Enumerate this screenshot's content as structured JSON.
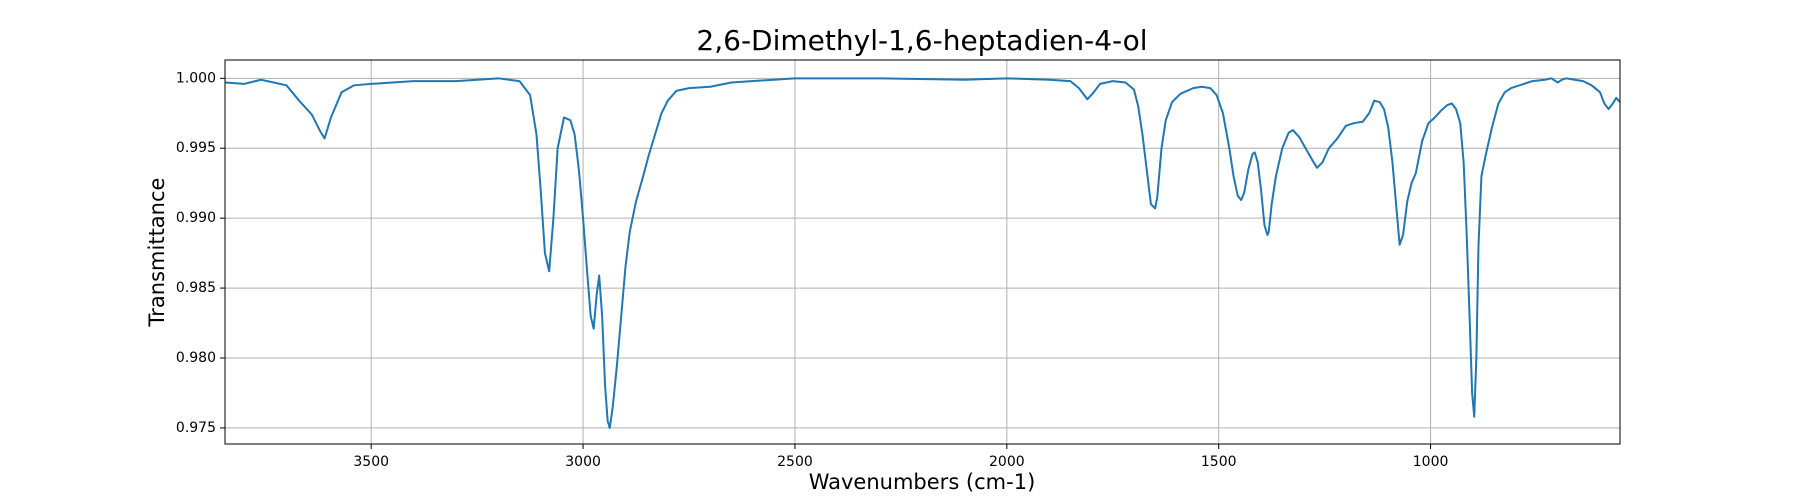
{
  "chart_data": {
    "type": "line",
    "title": "2,6-Dimethyl-1,6-heptadien-4-ol",
    "x_label": "Wavenumbers (cm-1)",
    "y_label": "Transmittance",
    "xlim": [
      3845,
      553
    ],
    "ylim": [
      0.97385,
      1.00131
    ],
    "xticks": [
      3500,
      3000,
      2500,
      2000,
      1500,
      1000
    ],
    "yticks": [
      {
        "value": 0.975,
        "label": "0.975"
      },
      {
        "value": 0.98,
        "label": "0.980"
      },
      {
        "value": 0.985,
        "label": "0.985"
      },
      {
        "value": 0.99,
        "label": "0.990"
      },
      {
        "value": 0.995,
        "label": "0.995"
      },
      {
        "value": 1.0,
        "label": "1.000"
      }
    ],
    "grid": true,
    "series": [
      {
        "name": "Transmittance",
        "color": "#1f77b4",
        "x": [
          3845,
          3800,
          3760,
          3730,
          3700,
          3670,
          3640,
          3620,
          3610,
          3595,
          3570,
          3540,
          3500,
          3400,
          3300,
          3200,
          3150,
          3125,
          3110,
          3100,
          3090,
          3080,
          3070,
          3060,
          3045,
          3030,
          3020,
          3010,
          3000,
          2990,
          2982,
          2975,
          2968,
          2962,
          2955,
          2948,
          2942,
          2937,
          2930,
          2920,
          2910,
          2900,
          2890,
          2875,
          2860,
          2845,
          2830,
          2815,
          2800,
          2780,
          2750,
          2700,
          2650,
          2500,
          2300,
          2100,
          2000,
          1900,
          1850,
          1830,
          1810,
          1795,
          1780,
          1750,
          1720,
          1700,
          1690,
          1680,
          1670,
          1660,
          1650,
          1645,
          1635,
          1625,
          1610,
          1590,
          1560,
          1540,
          1520,
          1505,
          1490,
          1475,
          1465,
          1455,
          1447,
          1440,
          1430,
          1420,
          1415,
          1408,
          1400,
          1392,
          1385,
          1382,
          1375,
          1365,
          1350,
          1335,
          1325,
          1310,
          1295,
          1280,
          1268,
          1255,
          1240,
          1220,
          1200,
          1180,
          1160,
          1145,
          1133,
          1120,
          1110,
          1100,
          1090,
          1080,
          1073,
          1065,
          1055,
          1045,
          1035,
          1020,
          1005,
          990,
          975,
          960,
          950,
          940,
          930,
          922,
          915,
          908,
          902,
          897,
          892,
          887,
          880,
          870,
          855,
          840,
          825,
          810,
          790,
          760,
          730,
          715,
          700,
          690,
          680,
          660,
          640,
          620,
          600,
          590,
          580,
          570,
          562,
          553
        ],
        "values": [
          0.9997,
          0.9996,
          0.9999,
          0.9997,
          0.9995,
          0.9984,
          0.9974,
          0.9962,
          0.9957,
          0.9972,
          0.999,
          0.9995,
          0.9996,
          0.9998,
          0.9998,
          1.0,
          0.9998,
          0.9988,
          0.996,
          0.992,
          0.9875,
          0.9862,
          0.99,
          0.995,
          0.9972,
          0.997,
          0.996,
          0.9935,
          0.99,
          0.986,
          0.983,
          0.9821,
          0.9845,
          0.9859,
          0.983,
          0.978,
          0.9755,
          0.975,
          0.9765,
          0.9795,
          0.983,
          0.9865,
          0.989,
          0.9912,
          0.9928,
          0.9945,
          0.996,
          0.9975,
          0.9984,
          0.9991,
          0.9993,
          0.9994,
          0.9997,
          1.0,
          1.0,
          0.9999,
          1.0,
          0.9999,
          0.9998,
          0.9993,
          0.9985,
          0.999,
          0.9996,
          0.9998,
          0.9997,
          0.9992,
          0.998,
          0.996,
          0.9935,
          0.991,
          0.9907,
          0.9915,
          0.995,
          0.997,
          0.9983,
          0.9989,
          0.9993,
          0.9994,
          0.9993,
          0.9988,
          0.9975,
          0.995,
          0.993,
          0.9916,
          0.9913,
          0.9918,
          0.9935,
          0.9946,
          0.9947,
          0.994,
          0.992,
          0.9895,
          0.9888,
          0.989,
          0.991,
          0.993,
          0.995,
          0.9961,
          0.9963,
          0.9958,
          0.995,
          0.9942,
          0.9936,
          0.994,
          0.995,
          0.9957,
          0.9966,
          0.9968,
          0.9969,
          0.9975,
          0.9984,
          0.9983,
          0.9978,
          0.9965,
          0.994,
          0.9905,
          0.9881,
          0.9888,
          0.9912,
          0.9925,
          0.9932,
          0.9955,
          0.9968,
          0.9972,
          0.9977,
          0.9981,
          0.9982,
          0.9978,
          0.9968,
          0.994,
          0.989,
          0.983,
          0.9775,
          0.9758,
          0.98,
          0.988,
          0.993,
          0.9945,
          0.9965,
          0.9982,
          0.999,
          0.9993,
          0.9995,
          0.9998,
          0.9999,
          1.0,
          0.9997,
          0.9999,
          1.0,
          0.9999,
          0.9998,
          0.9995,
          0.999,
          0.9982,
          0.9978,
          0.9982,
          0.9986,
          0.9983
        ]
      }
    ]
  }
}
